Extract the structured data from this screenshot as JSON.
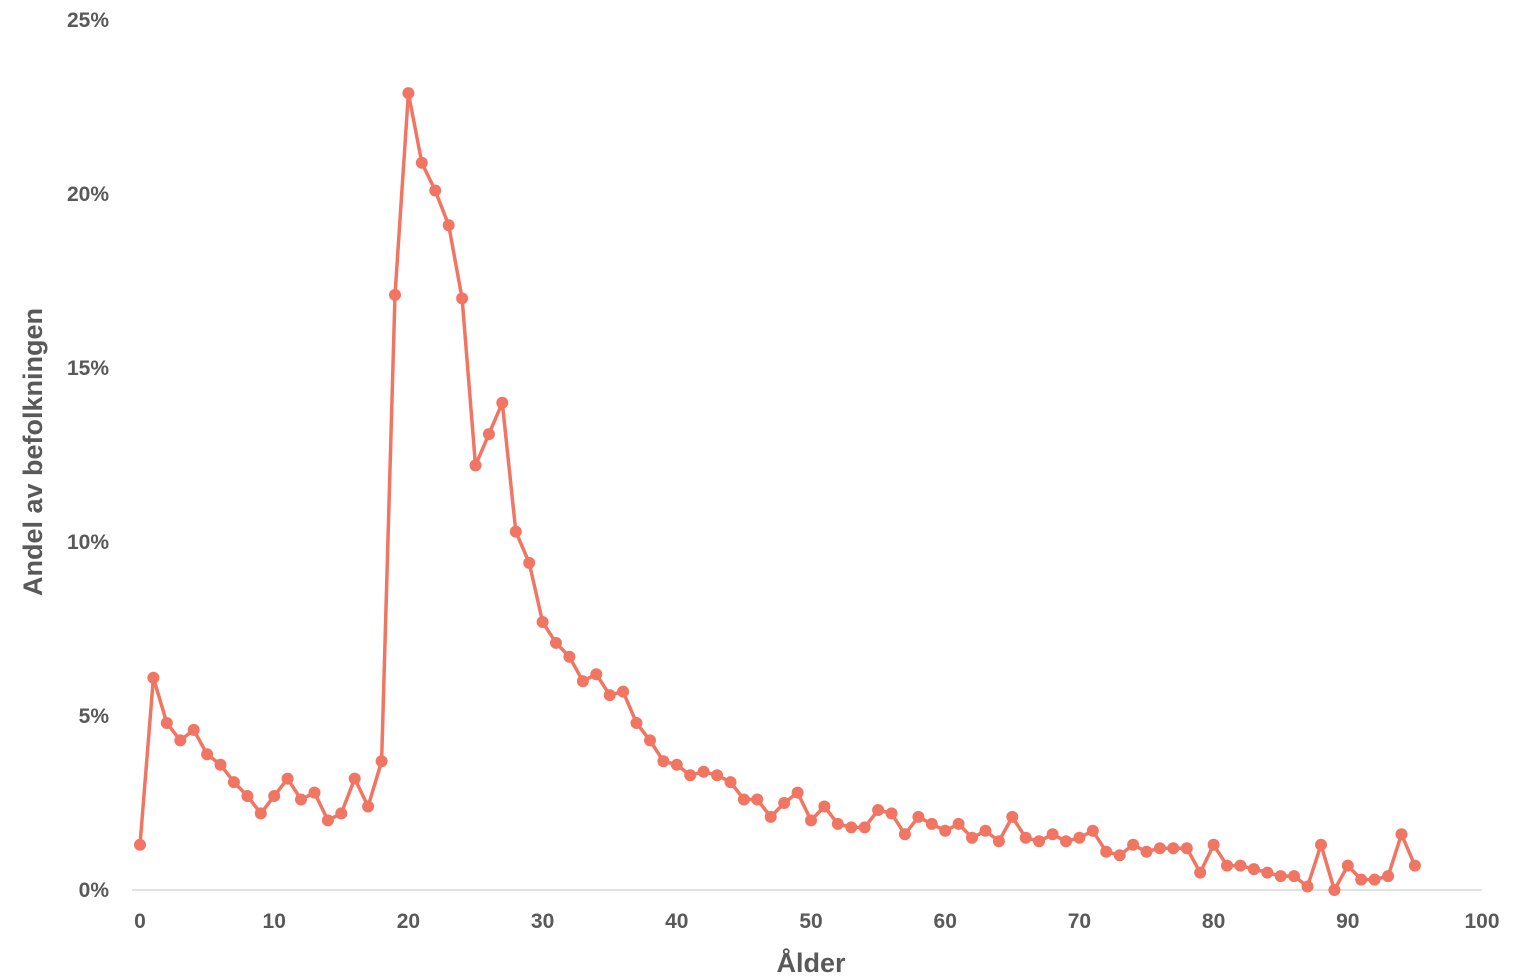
{
  "chart_data": {
    "type": "line",
    "xlabel": "Ålder",
    "ylabel": "Andel av befolkningen",
    "xlim": [
      0,
      100
    ],
    "ylim": [
      0,
      0.25
    ],
    "x_ticks": [
      0,
      10,
      20,
      30,
      40,
      50,
      60,
      70,
      80,
      90,
      100
    ],
    "x_tick_labels": [
      "0",
      "10",
      "20",
      "30",
      "40",
      "50",
      "60",
      "70",
      "80",
      "90",
      "100"
    ],
    "y_ticks": [
      0,
      0.05,
      0.1,
      0.15,
      0.2,
      0.25
    ],
    "y_tick_labels": [
      "0%",
      "5%",
      "10%",
      "15%",
      "20%",
      "25%"
    ],
    "grid": false,
    "legend": "none",
    "colors": {
      "series": "#F07563",
      "text": "#595959",
      "axis": "#D9D9D9"
    },
    "series": [
      {
        "x": [
          0,
          1,
          2,
          3,
          4,
          5,
          6,
          7,
          8,
          9,
          10,
          11,
          12,
          13,
          14,
          15,
          16,
          17,
          18,
          19,
          20,
          21,
          22,
          23,
          24,
          25,
          26,
          27,
          28,
          29,
          30,
          31,
          32,
          33,
          34,
          35,
          36,
          37,
          38,
          39,
          40,
          41,
          42,
          43,
          44,
          45,
          46,
          47,
          48,
          49,
          50,
          51,
          52,
          53,
          54,
          55,
          56,
          57,
          58,
          59,
          60,
          61,
          62,
          63,
          64,
          65,
          66,
          67,
          68,
          69,
          70,
          71,
          72,
          73,
          74,
          75,
          76,
          77,
          78,
          79,
          80,
          81,
          82,
          83,
          84,
          85,
          86,
          87,
          88,
          89,
          90,
          91,
          92,
          93,
          94,
          95
        ],
        "values": [
          0.013,
          0.061,
          0.048,
          0.043,
          0.046,
          0.039,
          0.036,
          0.031,
          0.027,
          0.022,
          0.027,
          0.032,
          0.026,
          0.028,
          0.02,
          0.022,
          0.032,
          0.024,
          0.037,
          0.171,
          0.229,
          0.209,
          0.201,
          0.191,
          0.17,
          0.122,
          0.131,
          0.14,
          0.103,
          0.094,
          0.077,
          0.071,
          0.067,
          0.06,
          0.062,
          0.056,
          0.057,
          0.048,
          0.043,
          0.037,
          0.036,
          0.033,
          0.034,
          0.033,
          0.031,
          0.026,
          0.026,
          0.021,
          0.025,
          0.028,
          0.02,
          0.024,
          0.019,
          0.018,
          0.018,
          0.023,
          0.022,
          0.016,
          0.021,
          0.019,
          0.017,
          0.019,
          0.015,
          0.017,
          0.014,
          0.021,
          0.015,
          0.014,
          0.016,
          0.014,
          0.015,
          0.017,
          0.011,
          0.01,
          0.013,
          0.011,
          0.012,
          0.012,
          0.012,
          0.005,
          0.013,
          0.007,
          0.007,
          0.006,
          0.005,
          0.004,
          0.004,
          0.001,
          0.013,
          0.0,
          0.007,
          0.003,
          0.003,
          0.004,
          0.016,
          0.007
        ]
      }
    ]
  }
}
